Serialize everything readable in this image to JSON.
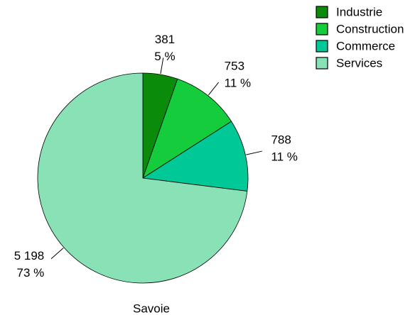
{
  "chart_data": {
    "type": "pie",
    "title": "Savoie",
    "categories": [
      "Industrie",
      "Construction",
      "Commerce",
      "Services"
    ],
    "values": [
      381,
      753,
      788,
      5198
    ],
    "value_labels": [
      "381",
      "753",
      "788",
      "5 198"
    ],
    "percents": [
      5,
      11,
      11,
      73
    ],
    "percent_labels": [
      "5 %",
      "11 %",
      "11 %",
      "73 %"
    ],
    "colors": [
      "#0a8c0a",
      "#14cc3c",
      "#00c896",
      "#88e2b6"
    ],
    "legend": "top-right"
  }
}
